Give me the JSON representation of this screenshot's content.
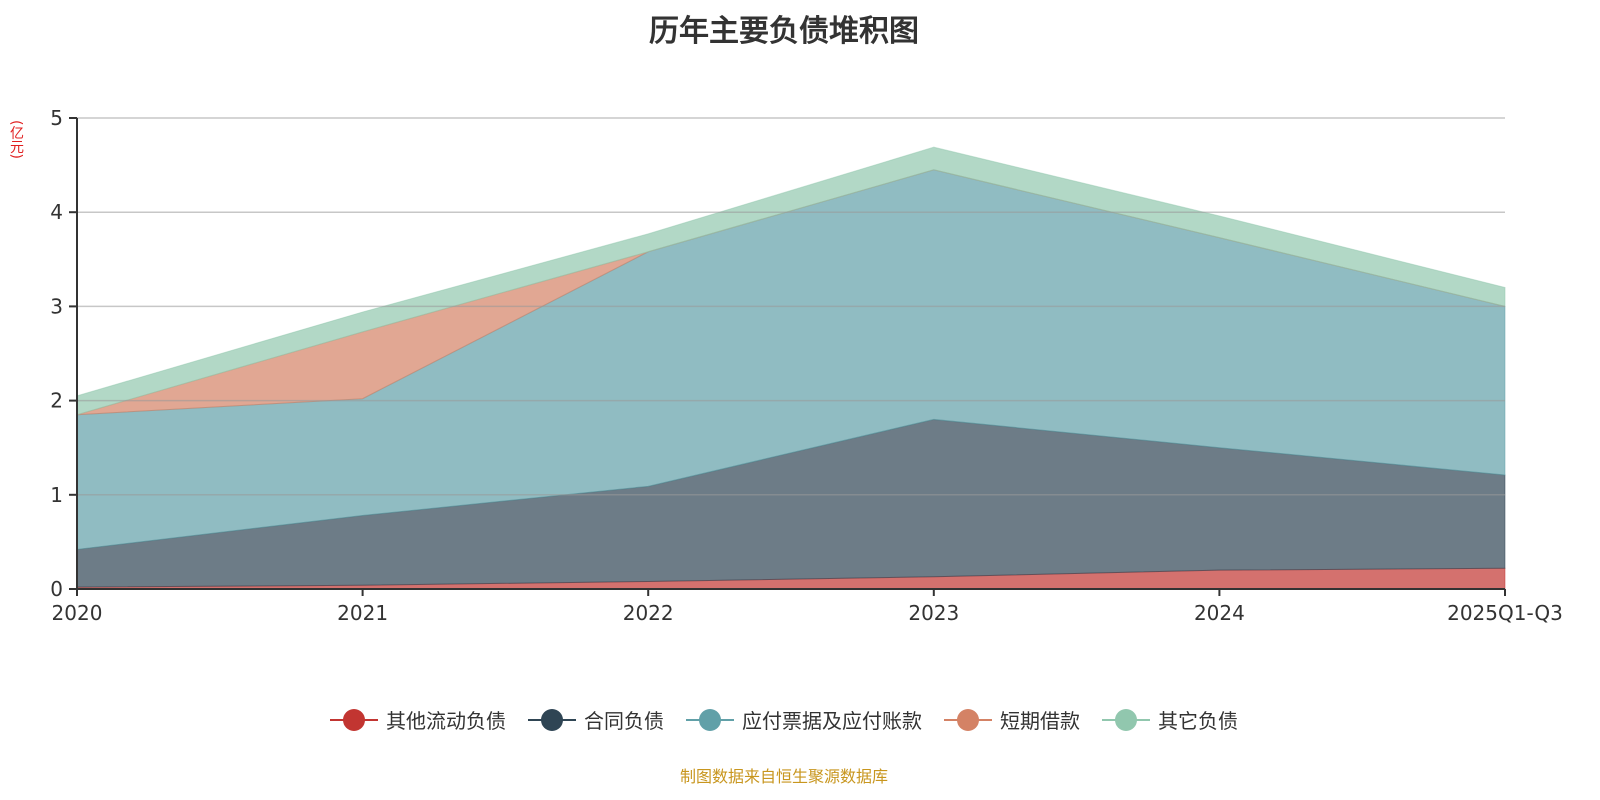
{
  "source": "制图数据来自恒生聚源数据库",
  "chart_data": {
    "type": "area",
    "stacked": true,
    "title": "历年主要负债堆积图",
    "ylabel": "(亿元)",
    "xlabel": "",
    "ylim": [
      0,
      5
    ],
    "yticks": [
      "0",
      "1",
      "2",
      "3",
      "4",
      "5"
    ],
    "categories": [
      "2020",
      "2021",
      "2022",
      "2023",
      "2024",
      "2025Q1-Q3"
    ],
    "legend_position": "bottom",
    "grid": true,
    "series": [
      {
        "name": "其他流动负债",
        "color": "#c23531",
        "values": [
          0.02,
          0.04,
          0.08,
          0.13,
          0.2,
          0.22
        ]
      },
      {
        "name": "合同负债",
        "color": "#2f4554",
        "values": [
          0.4,
          0.74,
          1.01,
          1.67,
          1.3,
          0.99
        ]
      },
      {
        "name": "应付票据及应付账款",
        "color": "#61a0a8",
        "values": [
          1.43,
          1.24,
          2.49,
          2.65,
          2.23,
          1.79
        ]
      },
      {
        "name": "短期借款",
        "color": "#d48265",
        "values": [
          0.0,
          0.71,
          0.0,
          0.0,
          0.0,
          0.0
        ]
      },
      {
        "name": "其它负债",
        "color": "#91c7ae",
        "values": [
          0.2,
          0.21,
          0.19,
          0.24,
          0.23,
          0.2
        ]
      }
    ]
  }
}
